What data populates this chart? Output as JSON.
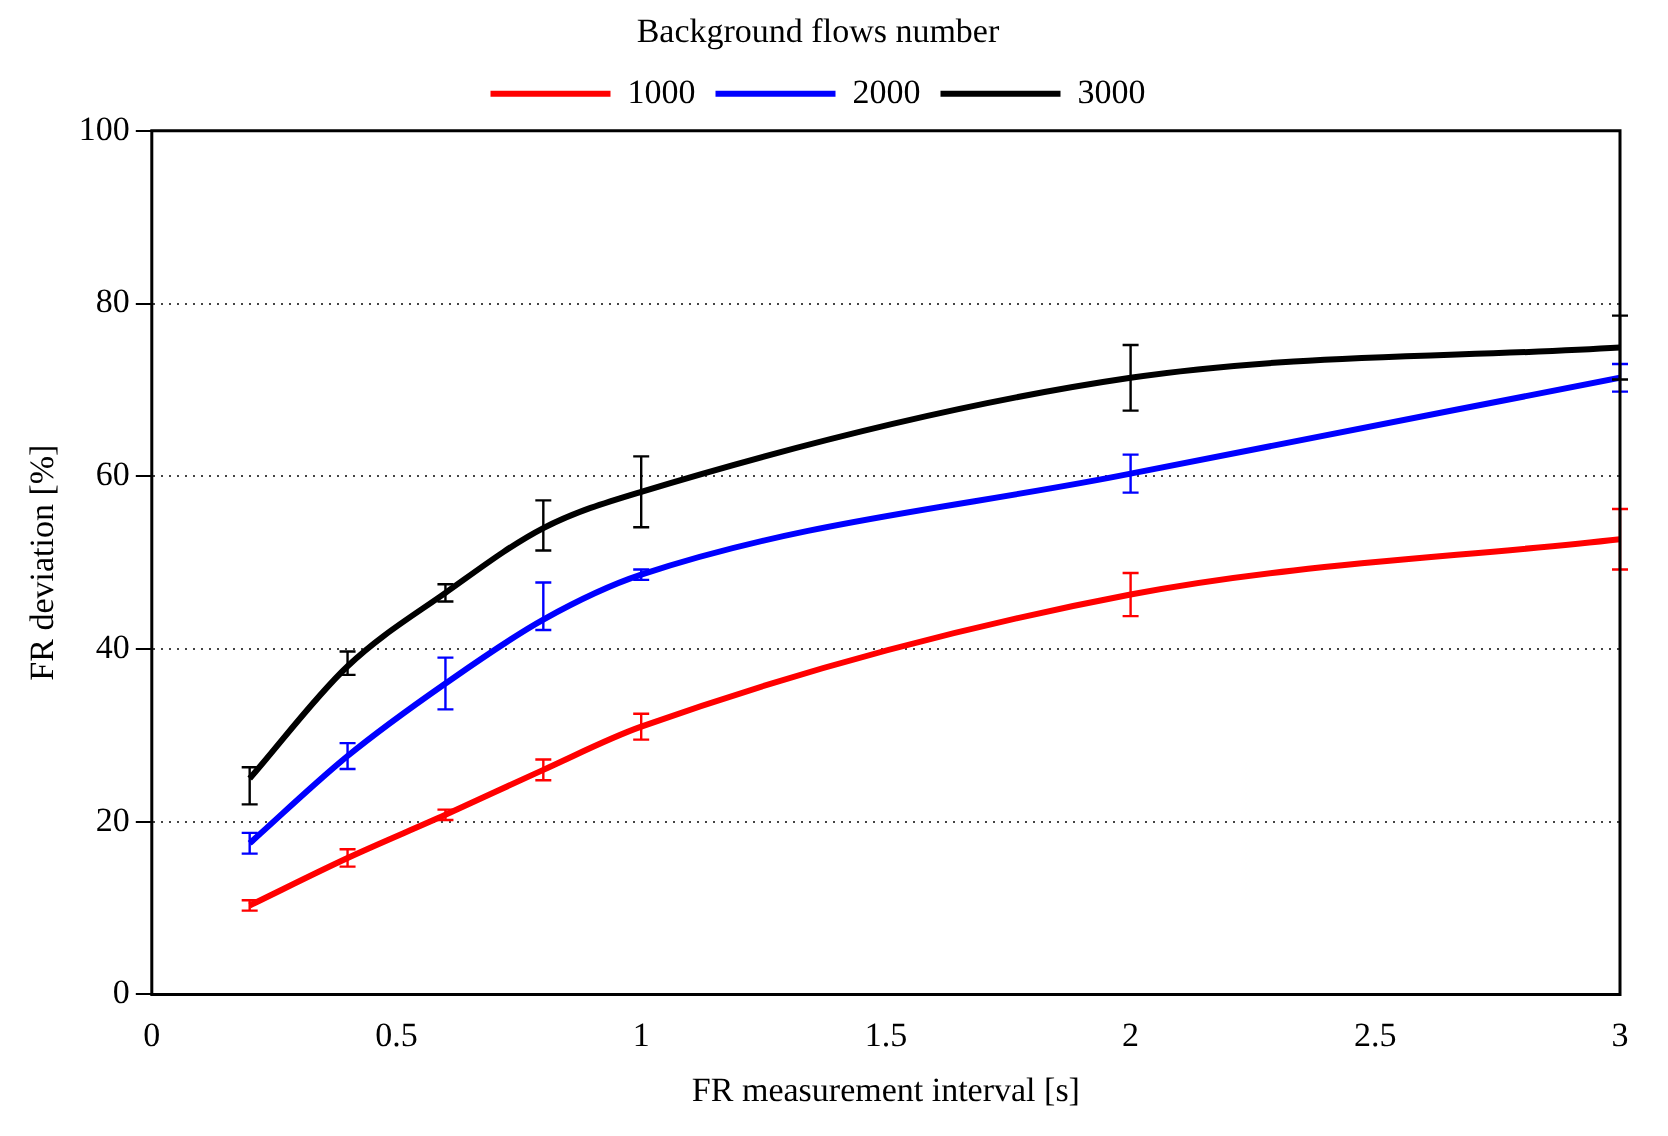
{
  "chart_data": {
    "type": "line",
    "xlabel": "FR measurement interval [s]",
    "ylabel": "FR deviation [%]",
    "legend_title": "Background flows number",
    "x": [
      0.2,
      0.4,
      0.6,
      0.8,
      1,
      2,
      3
    ],
    "series": [
      {
        "name": "1000",
        "color": "#ff0000",
        "values": [
          10.3,
          15.8,
          20.8,
          26,
          31,
          46.3,
          52.7
        ],
        "errors": [
          0.6,
          1,
          0.6,
          1.2,
          1.5,
          2.5,
          3.5
        ]
      },
      {
        "name": "2000",
        "color": "#0000ff",
        "values": [
          17.5,
          27.6,
          36,
          43.4,
          48.6,
          60.3,
          71.4
        ],
        "errors": [
          1.2,
          1.5,
          3,
          [
            42.2,
            47.7
          ],
          0.6,
          2.2,
          1.6
        ]
      },
      {
        "name": "3000",
        "color": "#000000",
        "values": [
          25,
          38,
          46.5,
          54,
          58.2,
          71.4,
          74.9
        ],
        "errors": [
          [
            22,
            26.3
          ],
          [
            37,
            39.7
          ],
          1,
          [
            51.4,
            57.2
          ],
          4.1,
          3.8,
          3.7
        ]
      }
    ],
    "xlim": [
      0,
      3
    ],
    "xticks": [
      0,
      0.5,
      1,
      1.5,
      2,
      2.5,
      3
    ],
    "ylim": [
      0,
      100
    ],
    "yticks": [
      0,
      20,
      40,
      60,
      80,
      100
    ],
    "grid": "y",
    "legend": "top",
    "line_style": "solid"
  }
}
